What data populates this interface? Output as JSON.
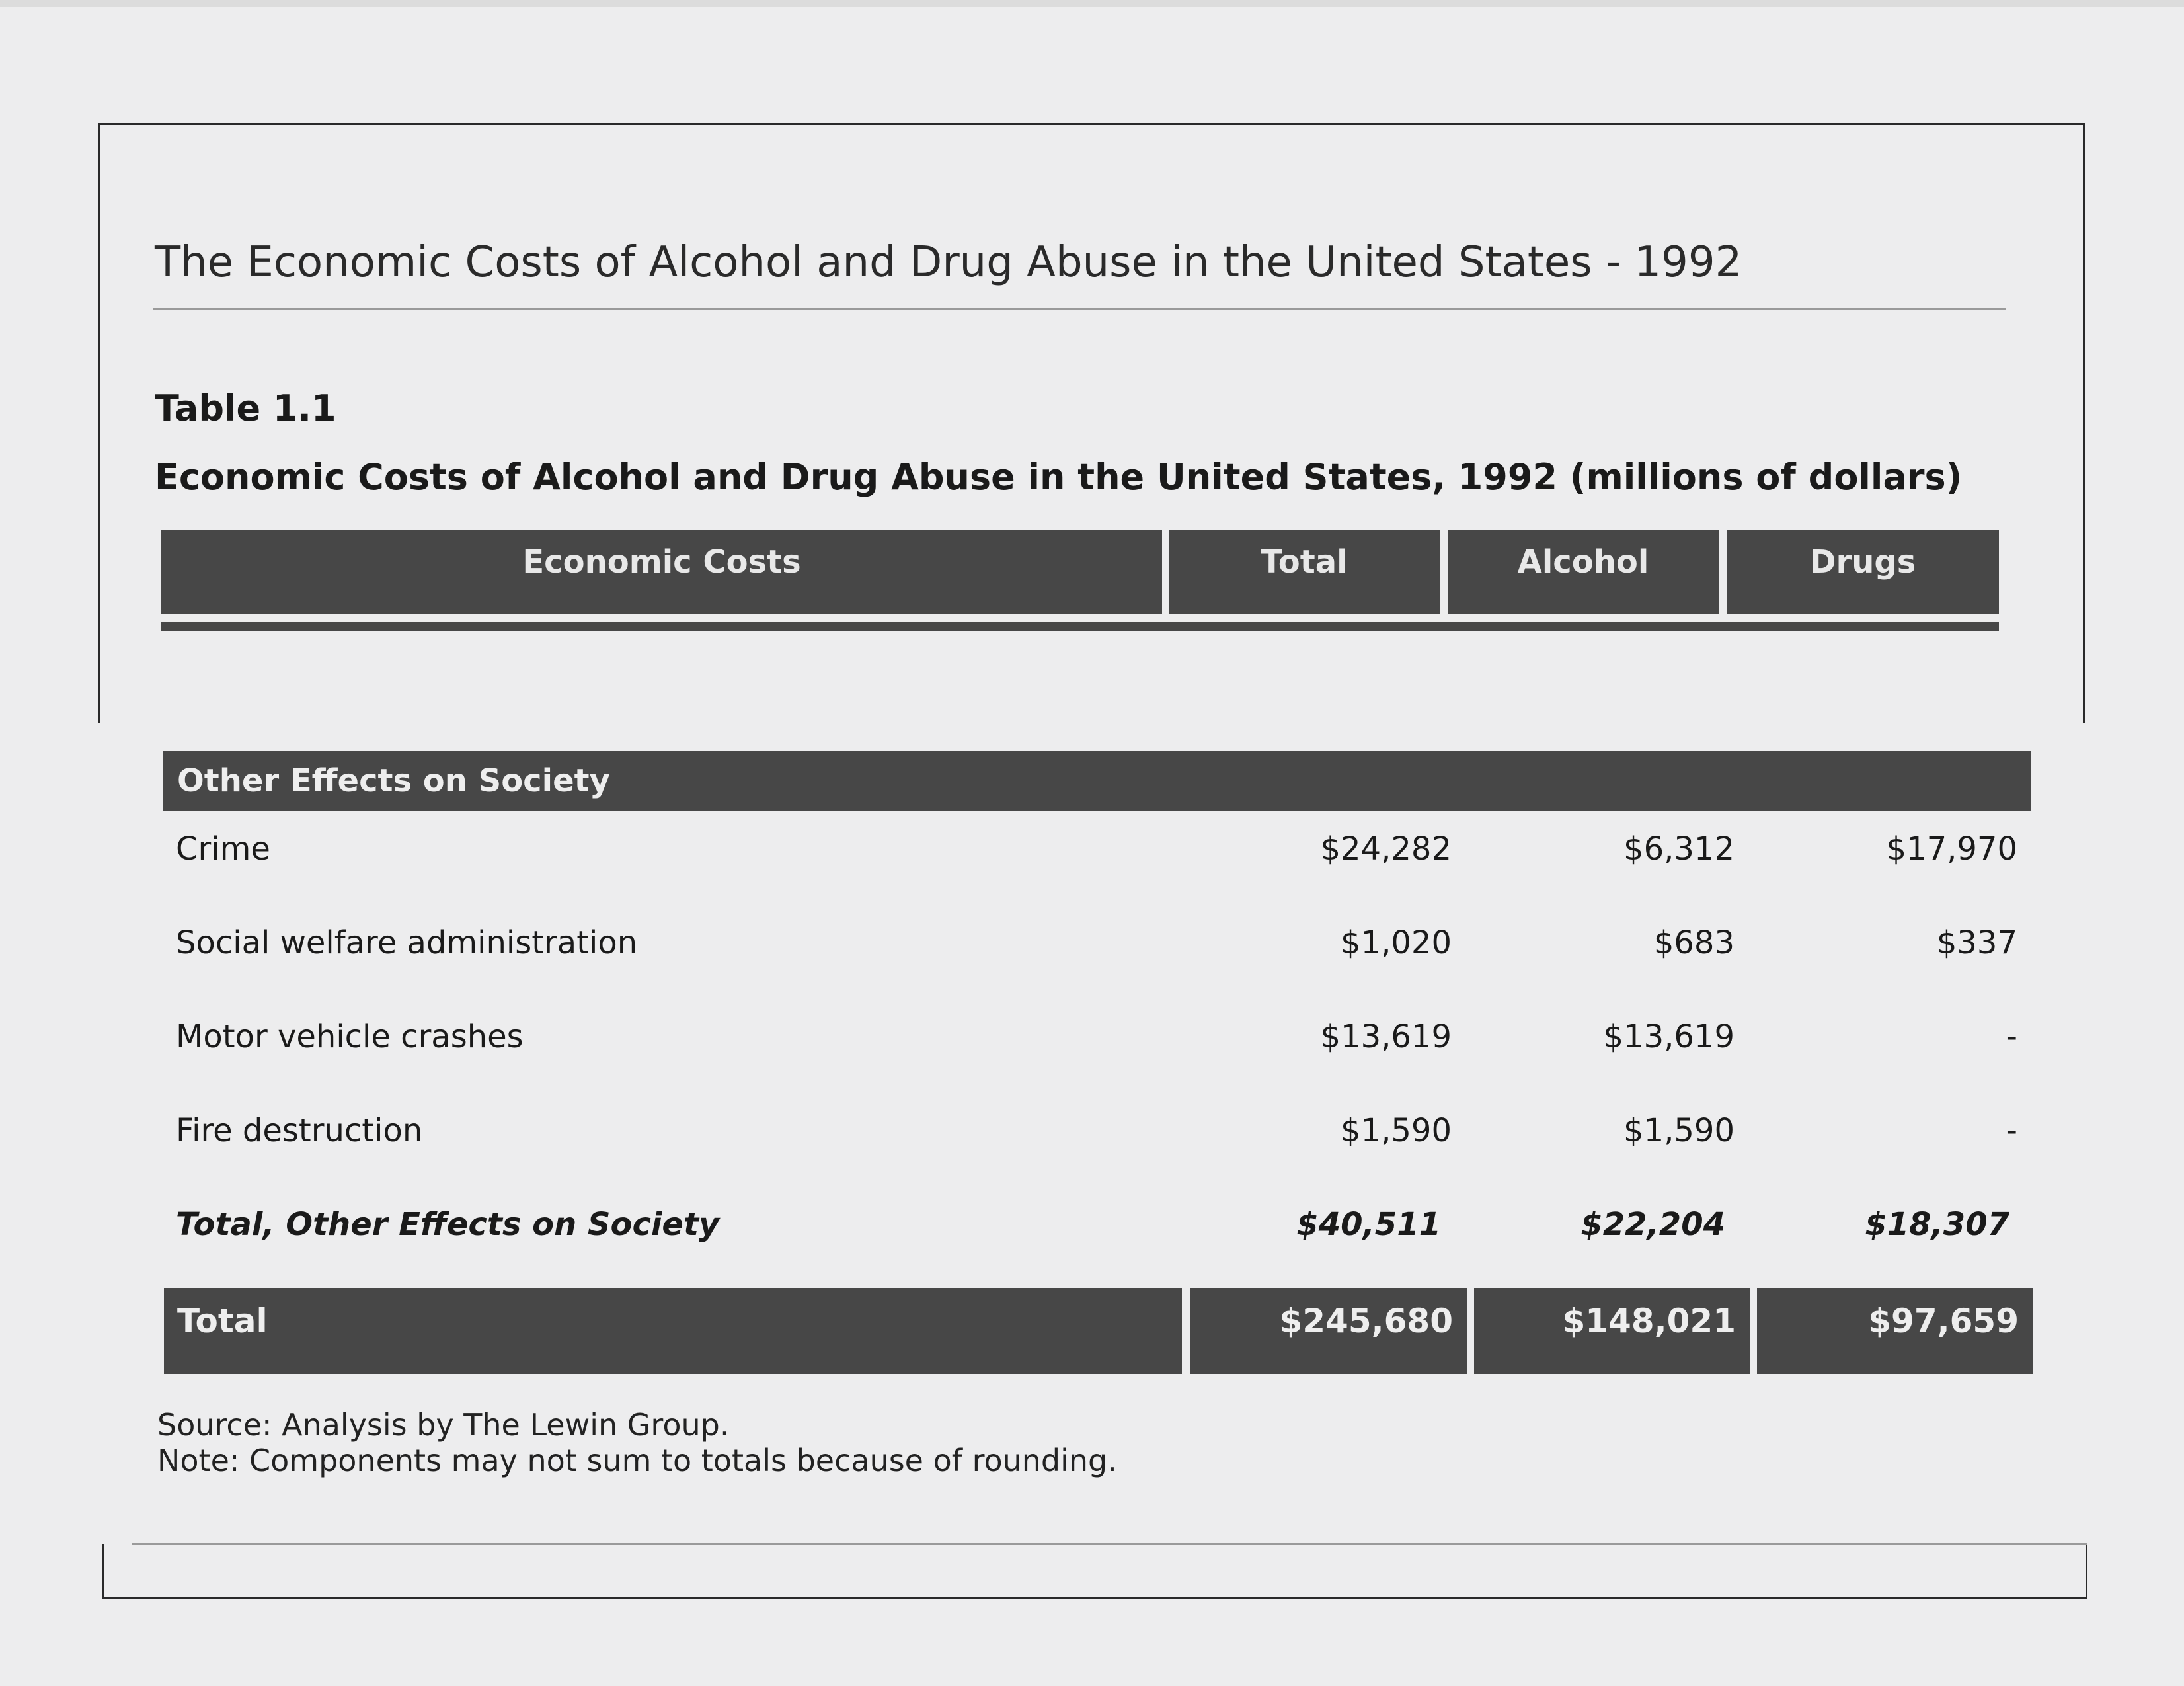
{
  "title": "The Economic Costs of Alcohol and Drug Abuse in the United States - 1992",
  "table_number": "Table 1.1",
  "table_caption": "Economic Costs of Alcohol and Drug Abuse in the United States, 1992 (millions of dollars)",
  "columns": [
    "Economic Costs",
    "Total",
    "Alcohol",
    "Drugs"
  ],
  "section": {
    "title": "Other Effects on Society",
    "rows": [
      {
        "label": "Crime",
        "total": "$24,282",
        "alcohol": "$6,312",
        "drugs": "$17,970"
      },
      {
        "label": "Social welfare administration",
        "total": "$1,020",
        "alcohol": "$683",
        "drugs": "$337"
      },
      {
        "label": "Motor vehicle crashes",
        "total": "$13,619",
        "alcohol": "$13,619",
        "drugs": "-"
      },
      {
        "label": "Fire destruction",
        "total": "$1,590",
        "alcohol": "$1,590",
        "drugs": "-"
      }
    ],
    "subtotal": {
      "label": "Total, Other Effects on Society",
      "total": "$40,511",
      "alcohol": "$22,204",
      "drugs": "$18,307"
    }
  },
  "grand_total": {
    "label": "Total",
    "total": "$245,680",
    "alcohol": "$148,021",
    "drugs": "$97,659"
  },
  "source": "Source: Analysis by The Lewin Group.",
  "note": "Note: Components may not sum to totals because of rounding."
}
